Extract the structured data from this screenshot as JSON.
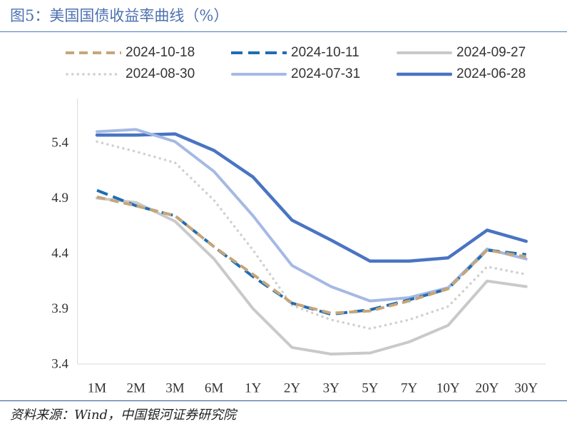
{
  "chart_data": {
    "type": "line",
    "title": "图5：美国国债收益率曲线（%）",
    "categories": [
      "1M",
      "2M",
      "3M",
      "6M",
      "1Y",
      "2Y",
      "3Y",
      "5Y",
      "7Y",
      "10Y",
      "20Y",
      "30Y"
    ],
    "yticks": [
      3.4,
      3.9,
      4.4,
      4.9,
      5.4
    ],
    "ylim": [
      3.4,
      5.8
    ],
    "grid": false,
    "legend_placement": "top",
    "series": [
      {
        "name": "2024-10-18",
        "color": "#C5A67A",
        "values": [
          4.91,
          4.83,
          4.74,
          4.46,
          4.21,
          3.95,
          3.86,
          3.88,
          3.97,
          4.08,
          4.43,
          4.37
        ]
      },
      {
        "name": "2024-10-11",
        "color": "#1F6DB5",
        "values": [
          4.97,
          4.83,
          4.74,
          4.46,
          4.19,
          3.95,
          3.85,
          3.89,
          3.98,
          4.08,
          4.43,
          4.39
        ]
      },
      {
        "name": "2024-09-27",
        "color": "#C9C9C9",
        "values": [
          4.9,
          4.86,
          4.69,
          4.35,
          3.9,
          3.55,
          3.49,
          3.5,
          3.6,
          3.75,
          4.15,
          4.1
        ]
      },
      {
        "name": "2024-08-30",
        "color": "#D0D0D0",
        "values": [
          5.41,
          5.32,
          5.22,
          4.88,
          4.43,
          3.93,
          3.8,
          3.72,
          3.8,
          3.92,
          4.28,
          4.21
        ]
      },
      {
        "name": "2024-07-31",
        "color": "#A5B9E4",
        "values": [
          5.5,
          5.52,
          5.41,
          5.14,
          4.74,
          4.29,
          4.1,
          3.97,
          4.0,
          4.09,
          4.44,
          4.35
        ]
      },
      {
        "name": "2024-06-28",
        "color": "#4A74C3",
        "values": [
          5.47,
          5.47,
          5.48,
          5.33,
          5.09,
          4.7,
          4.52,
          4.33,
          4.33,
          4.36,
          4.61,
          4.51
        ]
      }
    ]
  },
  "source": "资料来源：Wind，中国银河证券研究院"
}
